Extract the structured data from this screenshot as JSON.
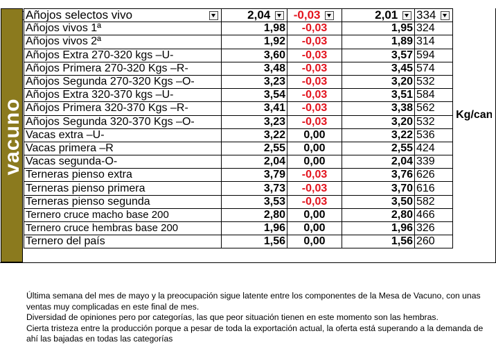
{
  "side_label": "vacuno",
  "unit_note": "Kg/canal sobre matadero",
  "header": {
    "name": "Añojos selectos vivo",
    "price": "2,04",
    "change": "-0,03",
    "prev": "2,01",
    "count": "334"
  },
  "rows": [
    {
      "name": "Añojos vivos 1ª",
      "price": "1,98",
      "change": "-0,03",
      "prev": "1,95",
      "count": "324",
      "neg": true
    },
    {
      "name": "Añojos vivos 2ª",
      "price": "1,92",
      "change": "-0,03",
      "prev": "1,89",
      "count": "314",
      "neg": true
    },
    {
      "name": "Añojos Extra 270-320 kgs –U-",
      "price": "3,60",
      "change": "-0,03",
      "prev": "3,57",
      "count": "594",
      "neg": true
    },
    {
      "name": "Añojos Primera 270-320 Kgs –R-",
      "price": "3,48",
      "change": "-0,03",
      "prev": "3,45",
      "count": "574",
      "neg": true
    },
    {
      "name": "Añojos Segunda 270-320 Kgs –O-",
      "price": "3,23",
      "change": "-0,03",
      "prev": "3,20",
      "count": "532",
      "neg": true
    },
    {
      "name": "Añojos Extra 320-370 kgs –U-",
      "price": "3,54",
      "change": "-0,03",
      "prev": "3,51",
      "count": "584",
      "neg": true
    },
    {
      "name": "Añojos Primera 320-370 Kgs –R-",
      "price": "3,41",
      "change": "-0,03",
      "prev": "3,38",
      "count": "562",
      "neg": true
    },
    {
      "name": "Añojos Segunda 320-370 Kgs –O-",
      "price": "3,23",
      "change": "-0,03",
      "prev": "3,20",
      "count": "532",
      "neg": true
    },
    {
      "name": "Vacas extra –U-",
      "price": "3,22",
      "change": "0,00",
      "prev": "3,22",
      "count": "536",
      "neg": false
    },
    {
      "name": "Vacas primera –R",
      "price": "2,55",
      "change": "0,00",
      "prev": "2,55",
      "count": "424",
      "neg": false
    },
    {
      "name": "Vacas segunda-O-",
      "price": "2,04",
      "change": "0,00",
      "prev": "2,04",
      "count": "339",
      "neg": false
    },
    {
      "name": "Terneras pienso extra",
      "price": "3,79",
      "change": "-0,03",
      "prev": "3,76",
      "count": "626",
      "neg": true
    },
    {
      "name": "Terneras pienso primera",
      "price": "3,73",
      "change": "-0,03",
      "prev": "3,70",
      "count": "616",
      "neg": true
    },
    {
      "name": "Terneras pienso segunda",
      "price": "3,53",
      "change": "-0,03",
      "prev": "3,50",
      "count": "582",
      "neg": true
    },
    {
      "name": "Ternero cruce macho base 200",
      "price": "2,80",
      "change": "0,00",
      "prev": "2,80",
      "count": "466",
      "neg": false
    },
    {
      "name": "Ternero cruce hembras base 200",
      "price": "1,96",
      "change": "0,00",
      "prev": "1,96",
      "count": "326",
      "neg": false
    },
    {
      "name": "Ternero del país",
      "price": "1,56",
      "change": "0,00",
      "prev": "1,56",
      "count": "260",
      "neg": false
    }
  ],
  "notes": [
    "Última semana del mes de mayo y la preocupación sigue latente entre los componentes de la Mesa de Vacuno, con unas ventas muy complicadas en este final de mes.",
    "Diversidad de opiniones pero por categorías, las que peor situación tienen en este momento son las hembras.",
    "Cierta tristeza entre la producción porque a pesar de toda la exportación actual, la oferta está superando a la demanda de ahí las bajadas en todas las categorías"
  ],
  "colors": {
    "side_band": "#8b7a1e",
    "negative": "#e3141e"
  }
}
